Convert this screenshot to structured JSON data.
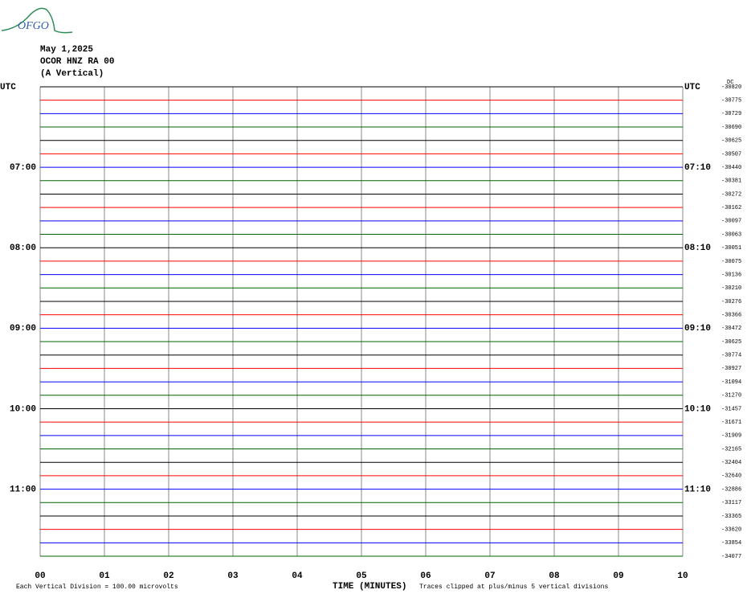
{
  "logo": "OFGO",
  "header": {
    "date": "May 1,2025",
    "station": "OCOR HNZ RA 00",
    "component": "(A Vertical)"
  },
  "dc_label": "DC",
  "trace_colors": [
    "#000000",
    "#ff0000",
    "#0000ff",
    "#006400"
  ],
  "rows": [
    {
      "left": "UTC",
      "right": "UTC",
      "offset": -30820
    },
    {
      "left": null,
      "right": null,
      "offset": -30775
    },
    {
      "left": null,
      "right": null,
      "offset": -30729
    },
    {
      "left": null,
      "right": null,
      "offset": -30690
    },
    {
      "left": null,
      "right": null,
      "offset": -30625
    },
    {
      "left": null,
      "right": null,
      "offset": -30507
    },
    {
      "left": "07:00",
      "right": "07:10",
      "offset": -30440
    },
    {
      "left": null,
      "right": null,
      "offset": -30381
    },
    {
      "left": null,
      "right": null,
      "offset": -30272
    },
    {
      "left": null,
      "right": null,
      "offset": -30162
    },
    {
      "left": null,
      "right": null,
      "offset": -30097
    },
    {
      "left": null,
      "right": null,
      "offset": -30063
    },
    {
      "left": "08:00",
      "right": "08:10",
      "offset": -30051
    },
    {
      "left": null,
      "right": null,
      "offset": -30075
    },
    {
      "left": null,
      "right": null,
      "offset": -30136
    },
    {
      "left": null,
      "right": null,
      "offset": -30210
    },
    {
      "left": null,
      "right": null,
      "offset": -30276
    },
    {
      "left": null,
      "right": null,
      "offset": -30366
    },
    {
      "left": "09:00",
      "right": "09:10",
      "offset": -30472
    },
    {
      "left": null,
      "right": null,
      "offset": -30625
    },
    {
      "left": null,
      "right": null,
      "offset": -30774
    },
    {
      "left": null,
      "right": null,
      "offset": -30927
    },
    {
      "left": null,
      "right": null,
      "offset": -31094
    },
    {
      "left": null,
      "right": null,
      "offset": -31270
    },
    {
      "left": "10:00",
      "right": "10:10",
      "offset": -31457
    },
    {
      "left": null,
      "right": null,
      "offset": -31671
    },
    {
      "left": null,
      "right": null,
      "offset": -31909
    },
    {
      "left": null,
      "right": null,
      "offset": -32165
    },
    {
      "left": null,
      "right": null,
      "offset": -32404
    },
    {
      "left": null,
      "right": null,
      "offset": -32640
    },
    {
      "left": "11:00",
      "right": "11:10",
      "offset": -32886
    },
    {
      "left": null,
      "right": null,
      "offset": -33117
    },
    {
      "left": null,
      "right": null,
      "offset": -33365
    },
    {
      "left": null,
      "right": null,
      "offset": -33620
    },
    {
      "left": null,
      "right": null,
      "offset": -33854
    },
    {
      "left": null,
      "right": null,
      "offset": -34077
    }
  ],
  "x_ticks": [
    "00",
    "01",
    "02",
    "03",
    "04",
    "05",
    "06",
    "07",
    "08",
    "09",
    "10"
  ],
  "footer": {
    "scale": "Each Vertical Division =  100.00 microvolts",
    "x_label": "TIME (MINUTES)",
    "note": "Traces clipped at plus/minus 5 vertical divisions"
  }
}
